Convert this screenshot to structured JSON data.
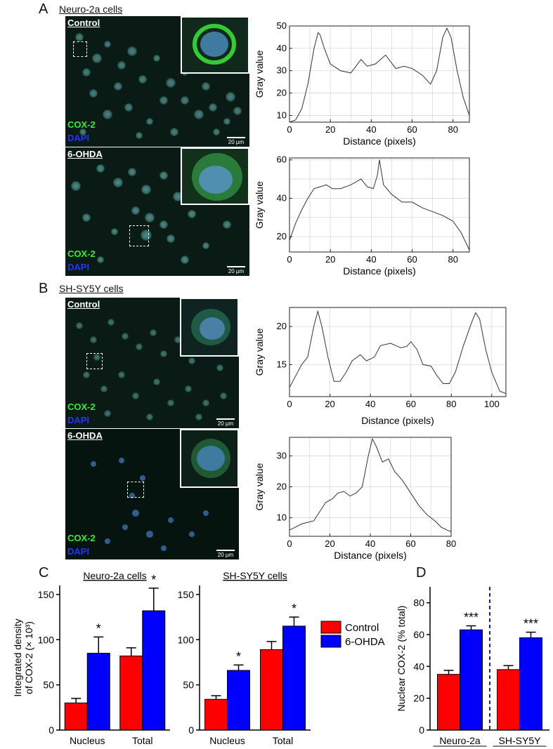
{
  "panels": {
    "A": {
      "letter": "A",
      "title": "Neuro-2a cells",
      "images": [
        {
          "condition": "Control",
          "stain1": "COX-2",
          "stain2": "DAPI",
          "scale": "20 µm"
        },
        {
          "condition": "6-OHDA",
          "stain1": "COX-2",
          "stain2": "DAPI",
          "scale": "20 µm"
        }
      ]
    },
    "B": {
      "letter": "B",
      "title": "SH-SY5Y cells",
      "images": [
        {
          "condition": "Control",
          "stain1": "COX-2",
          "stain2": "DAPI",
          "scale": "20 µm"
        },
        {
          "condition": "6-OHDA",
          "stain1": "COX-2",
          "stain2": "DAPI",
          "scale": "20 µm"
        }
      ]
    },
    "C": {
      "letter": "C"
    },
    "D": {
      "letter": "D"
    }
  },
  "colors": {
    "control": "#ff0000",
    "ohda": "#0000ff",
    "cox": "#33ee33",
    "dapi": "#2233ff"
  },
  "legend": {
    "control": "Control",
    "ohda": "6-OHDA"
  },
  "chart_data": [
    {
      "id": "profileA1",
      "type": "line",
      "xlabel": "Distance (pixels)",
      "ylabel": "Gray value",
      "xlim": [
        0,
        88
      ],
      "ylim": [
        7,
        50
      ],
      "xticks": [
        0,
        20,
        40,
        60,
        80
      ],
      "yticks": [
        10,
        20,
        30,
        40,
        50
      ],
      "xgrid": [
        0,
        10,
        20,
        30,
        40,
        50,
        60,
        70,
        80
      ],
      "ygrid": [
        10,
        20,
        30,
        40,
        50
      ],
      "x": [
        0,
        3,
        6,
        9,
        12,
        14,
        15,
        17,
        20,
        25,
        30,
        35,
        38,
        42,
        47,
        52,
        56,
        60,
        65,
        69,
        72,
        75,
        77,
        79,
        82,
        85,
        88
      ],
      "y": [
        7,
        8,
        13,
        24,
        40,
        47,
        46,
        40,
        33,
        30,
        29,
        35,
        32,
        33,
        37,
        31,
        32,
        31,
        28,
        24,
        30,
        45,
        49,
        45,
        30,
        18,
        10
      ]
    },
    {
      "id": "profileA2",
      "type": "line",
      "xlabel": "Distance (pixels)",
      "ylabel": "Gray value",
      "xlim": [
        0,
        88
      ],
      "ylim": [
        12,
        61
      ],
      "xticks": [
        0,
        20,
        40,
        60,
        80
      ],
      "yticks": [
        20,
        40,
        60
      ],
      "xgrid": [
        0,
        10,
        20,
        30,
        40,
        50,
        60,
        70,
        80
      ],
      "ygrid": [
        20,
        30,
        40,
        50,
        60
      ],
      "x": [
        0,
        3,
        6,
        9,
        12,
        15,
        18,
        21,
        25,
        30,
        35,
        38,
        41,
        43,
        44,
        46,
        50,
        55,
        60,
        65,
        70,
        75,
        80,
        84,
        88
      ],
      "y": [
        18,
        27,
        34,
        40,
        45,
        46,
        47,
        45,
        45,
        47,
        50,
        46,
        45,
        52,
        60,
        47,
        42,
        38,
        38,
        35,
        33,
        31,
        28,
        22,
        13
      ]
    },
    {
      "id": "profileB1",
      "type": "line",
      "xlabel": "Distance (pixels)",
      "ylabel": "Gray value",
      "xlim": [
        0,
        107
      ],
      "ylim": [
        10.8,
        22.5
      ],
      "xticks": [
        0,
        20,
        40,
        60,
        80,
        100
      ],
      "yticks": [
        15,
        20
      ],
      "xgrid": [
        0,
        20,
        40,
        60,
        80,
        100
      ],
      "ygrid": [
        15,
        20
      ],
      "x": [
        0,
        3,
        6,
        9,
        12,
        14,
        16,
        19,
        22,
        25,
        28,
        31,
        35,
        38,
        42,
        45,
        50,
        55,
        58,
        60,
        63,
        66,
        70,
        73,
        76,
        79,
        82,
        86,
        90,
        92,
        94,
        97,
        100,
        104,
        107
      ],
      "y": [
        12,
        13.5,
        15,
        16,
        20,
        22,
        20,
        16,
        12.8,
        12.8,
        14,
        15.5,
        16.3,
        15.5,
        16,
        17.5,
        17.8,
        17.2,
        17.4,
        18,
        17,
        15,
        14.8,
        13.5,
        12.5,
        12.5,
        14,
        17.5,
        20.5,
        21.8,
        21,
        17,
        14,
        11.5,
        11.2
      ]
    },
    {
      "id": "profileB2",
      "type": "line",
      "xlabel": "Distance (pixels)",
      "ylabel": "Gray value",
      "xlim": [
        0,
        80
      ],
      "ylim": [
        4,
        36
      ],
      "xticks": [
        0,
        20,
        40,
        60,
        80
      ],
      "yticks": [
        10,
        20,
        30
      ],
      "xgrid": [
        0,
        10,
        20,
        30,
        40,
        50,
        60,
        70,
        80
      ],
      "ygrid": [
        10,
        20,
        30
      ],
      "x": [
        0,
        3,
        6,
        9,
        12,
        15,
        18,
        21,
        24,
        27,
        30,
        33,
        36,
        39,
        41,
        43,
        46,
        49,
        52,
        56,
        60,
        64,
        68,
        72,
        75,
        78,
        80
      ],
      "y": [
        6,
        7,
        8,
        8.5,
        9,
        12,
        15,
        16,
        18,
        18.5,
        17,
        18,
        20,
        30,
        35.5,
        33,
        28,
        29,
        25,
        22,
        18,
        14,
        11,
        9,
        7,
        6,
        5.5
      ]
    },
    {
      "id": "barC1",
      "type": "bar",
      "title": "Neuro-2a cells",
      "ylabel": "Integrated density of COX-2 (× 10³)",
      "ylim": [
        0,
        160
      ],
      "yticks": [
        0,
        50,
        100,
        150
      ],
      "categories": [
        "Nucleus",
        "Total"
      ],
      "series": [
        {
          "name": "Control",
          "values": [
            30,
            82
          ],
          "errors": [
            5,
            9
          ]
        },
        {
          "name": "6-OHDA",
          "values": [
            85,
            132
          ],
          "errors": [
            18,
            25
          ]
        }
      ],
      "annotations": [
        "*",
        "*"
      ]
    },
    {
      "id": "barC2",
      "type": "bar",
      "title": "SH-SY5Y cells",
      "ylabel": "",
      "ylim": [
        0,
        160
      ],
      "yticks": [
        0,
        50,
        100,
        150
      ],
      "categories": [
        "Nucleus",
        "Total"
      ],
      "series": [
        {
          "name": "Control",
          "values": [
            34,
            89
          ],
          "errors": [
            4,
            9
          ]
        },
        {
          "name": "6-OHDA",
          "values": [
            66,
            115
          ],
          "errors": [
            6,
            10
          ]
        }
      ],
      "annotations": [
        "*",
        "*"
      ]
    },
    {
      "id": "barD",
      "type": "bar",
      "ylabel": "Nuclear COX-2 (% total)",
      "ylim": [
        0,
        90
      ],
      "yticks": [
        0,
        20,
        40,
        60,
        80
      ],
      "categories": [
        "Neuro-2a",
        "SH-SY5Y"
      ],
      "series": [
        {
          "name": "Control",
          "values": [
            35,
            38
          ],
          "errors": [
            2.5,
            2.5
          ]
        },
        {
          "name": "6-OHDA",
          "values": [
            63,
            58
          ],
          "errors": [
            2.5,
            3.5
          ]
        }
      ],
      "annotations": [
        "***",
        "***"
      ]
    }
  ]
}
